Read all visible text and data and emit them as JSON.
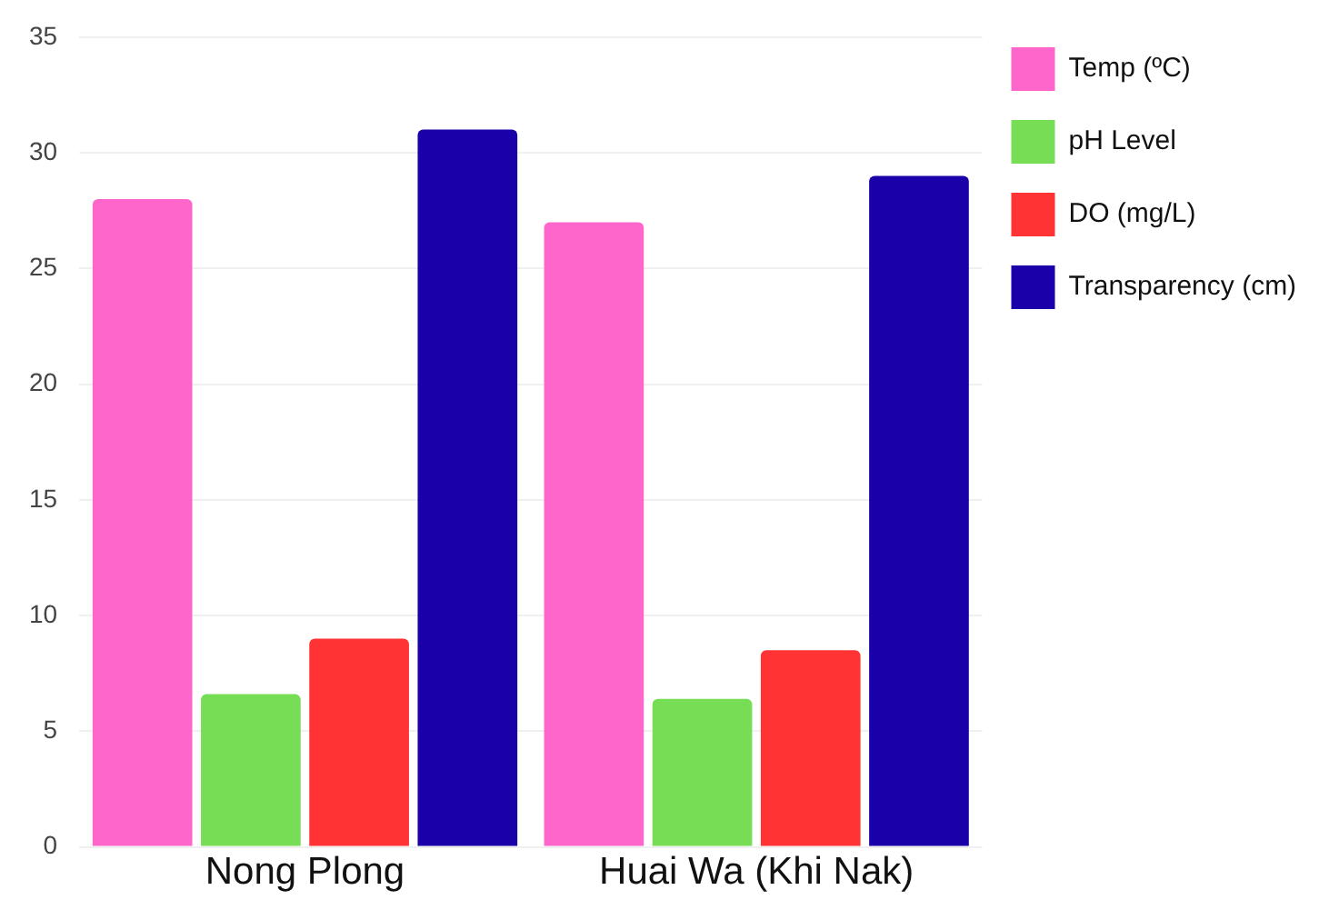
{
  "chart_data": {
    "type": "bar",
    "categories": [
      "Nong Plong",
      "Huai Wa (Khi Nak)"
    ],
    "series": [
      {
        "name": "Temp (ºC)",
        "color": "#ff66cc",
        "values": [
          28,
          27
        ]
      },
      {
        "name": "pH Level",
        "color": "#77dd55",
        "values": [
          6.6,
          6.4
        ]
      },
      {
        "name": "DO (mg/L)",
        "color": "#ff3333",
        "values": [
          9,
          8.5
        ]
      },
      {
        "name": "Transparency (cm)",
        "color": "#1a00a8",
        "values": [
          31,
          29
        ]
      }
    ],
    "ylim": [
      0,
      35
    ],
    "yticks": [
      0,
      5,
      10,
      15,
      20,
      25,
      30,
      35
    ],
    "grid": "y",
    "legend": "top right"
  }
}
